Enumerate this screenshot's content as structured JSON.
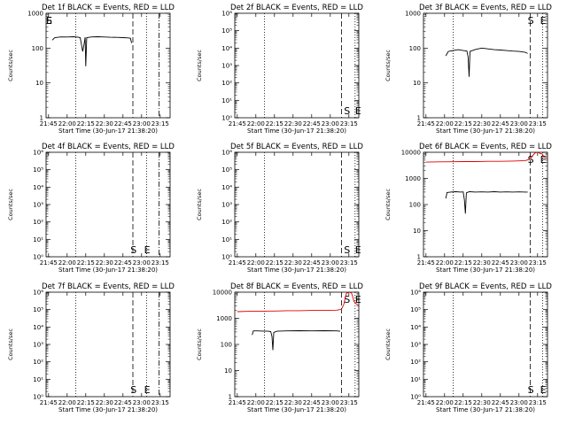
{
  "figure": {
    "xlabel": "Start Time (30-Jun-17 21:38:20)",
    "ylabel": "Counts/sec",
    "xticks": [
      "21:45",
      "22:00",
      "22:15",
      "22:30",
      "22:45",
      "23:00",
      "23:15"
    ],
    "marker_start": "S",
    "marker_end": "E",
    "colors": {
      "events": "#000000",
      "lld": "#dd0000",
      "background": "#ffffff"
    }
  },
  "chart_data": [
    {
      "type": "line",
      "title": "Det 1f BLACK = Events, RED = LLD",
      "xlabel": "Start Time (30-Jun-17 21:38:20)",
      "ylabel": "Counts/sec",
      "log": true,
      "ylim": [
        1,
        1000
      ],
      "xlim": [
        -2,
        98
      ],
      "mlim": [
        0,
        100
      ],
      "yticks": [
        {
          "v": 1,
          "t": "1"
        },
        {
          "v": 10,
          "t": "10"
        },
        {
          "v": 100,
          "t": "100"
        },
        {
          "v": 1000,
          "t": "1000"
        }
      ],
      "markers": {
        "s": 0,
        "e": 0,
        "s_pos": "top"
      },
      "vlines": [
        {
          "x": 22,
          "style": "dotted"
        },
        {
          "x": 68,
          "style": "dashed"
        },
        {
          "x": 79,
          "style": "dotted"
        },
        {
          "x": 89,
          "style": "dashdot"
        }
      ],
      "series": [
        {
          "color": "#000000",
          "points": [
            [
              3,
              170
            ],
            [
              5,
              200
            ],
            [
              10,
              210
            ],
            [
              15,
              208
            ],
            [
              20,
              212
            ],
            [
              24,
              205
            ],
            [
              25.5,
              200
            ],
            [
              26.5,
              130
            ],
            [
              27.5,
              80
            ],
            [
              28.5,
              120
            ],
            [
              29.5,
              205
            ],
            [
              30,
              30
            ],
            [
              30.8,
              200
            ],
            [
              35,
              210
            ],
            [
              40,
              212
            ],
            [
              45,
              208
            ],
            [
              50,
              205
            ],
            [
              55,
              203
            ],
            [
              60,
              200
            ],
            [
              64,
              196
            ],
            [
              66,
              192
            ],
            [
              67,
              140
            ]
          ]
        }
      ]
    },
    {
      "type": "line",
      "title": "Det 2f BLACK = Events, RED = LLD",
      "xlabel": "Start Time (30-Jun-17 21:38:20)",
      "ylabel": "Counts/sec",
      "log": true,
      "ylim": [
        1,
        1000000
      ],
      "xlim": [
        -2,
        98
      ],
      "mlim": [
        0,
        100
      ],
      "yticks": [
        {
          "v": 1,
          "t": "10⁰"
        },
        {
          "v": 10,
          "t": "10¹"
        },
        {
          "v": 100,
          "t": "10²"
        },
        {
          "v": 1000,
          "t": "10³"
        },
        {
          "v": 10000,
          "t": "10⁴"
        },
        {
          "v": 100000,
          "t": "10⁵"
        },
        {
          "v": 1000000,
          "t": "10⁶"
        }
      ],
      "markers": {
        "s": 88,
        "e": 97,
        "s_pos": "bottom"
      },
      "vlines": [
        {
          "x": 22,
          "style": "dotted"
        },
        {
          "x": 84,
          "style": "dashed"
        },
        {
          "x": 95,
          "style": "dotted"
        },
        {
          "x": 100,
          "style": "dashdot"
        }
      ],
      "series": []
    },
    {
      "type": "line",
      "title": "Det 3f BLACK = Events, RED = LLD",
      "xlabel": "Start Time (30-Jun-17 21:38:20)",
      "ylabel": "Counts/sec",
      "log": true,
      "ylim": [
        1,
        1000
      ],
      "xlim": [
        -2,
        98
      ],
      "mlim": [
        0,
        100
      ],
      "yticks": [
        {
          "v": 1,
          "t": "1"
        },
        {
          "v": 10,
          "t": "10"
        },
        {
          "v": 100,
          "t": "100"
        },
        {
          "v": 1000,
          "t": "1000"
        }
      ],
      "markers": {
        "s": 84,
        "e": 94,
        "s_pos": "top"
      },
      "vlines": [
        {
          "x": 22,
          "style": "dotted"
        },
        {
          "x": 84,
          "style": "dashed"
        },
        {
          "x": 94,
          "style": "dotted"
        },
        {
          "x": 103,
          "style": "dashdot"
        }
      ],
      "series": [
        {
          "color": "#000000",
          "points": [
            [
              16,
              60
            ],
            [
              18,
              80
            ],
            [
              22,
              85
            ],
            [
              26,
              90
            ],
            [
              30,
              85
            ],
            [
              33,
              82
            ],
            [
              34,
              55
            ],
            [
              34.8,
              15
            ],
            [
              35.5,
              80
            ],
            [
              40,
              92
            ],
            [
              45,
              100
            ],
            [
              50,
              95
            ],
            [
              55,
              90
            ],
            [
              60,
              88
            ],
            [
              65,
              85
            ],
            [
              70,
              82
            ],
            [
              75,
              80
            ],
            [
              80,
              76
            ],
            [
              82,
              70
            ]
          ]
        }
      ]
    },
    {
      "type": "line",
      "title": "Det 4f BLACK = Events, RED = LLD",
      "xlabel": "Start Time (30-Jun-17 21:38:20)",
      "ylabel": "Counts/sec",
      "log": true,
      "ylim": [
        1,
        1000000
      ],
      "xlim": [
        -2,
        98
      ],
      "mlim": [
        0,
        100
      ],
      "yticks": [
        {
          "v": 1,
          "t": "10⁰"
        },
        {
          "v": 10,
          "t": "10¹"
        },
        {
          "v": 100,
          "t": "10²"
        },
        {
          "v": 1000,
          "t": "10³"
        },
        {
          "v": 10000,
          "t": "10⁴"
        },
        {
          "v": 100000,
          "t": "10⁵"
        },
        {
          "v": 1000000,
          "t": "10⁶"
        }
      ],
      "markers": {
        "s": 68,
        "e": 79,
        "s_pos": "bottom"
      },
      "vlines": [
        {
          "x": 22,
          "style": "dotted"
        },
        {
          "x": 68,
          "style": "dashed"
        },
        {
          "x": 79,
          "style": "dotted"
        },
        {
          "x": 89,
          "style": "dashdot"
        }
      ],
      "series": []
    },
    {
      "type": "line",
      "title": "Det 5f BLACK = Events, RED = LLD",
      "xlabel": "Start Time (30-Jun-17 21:38:20)",
      "ylabel": "Counts/sec",
      "log": true,
      "ylim": [
        1,
        1000000
      ],
      "xlim": [
        -2,
        98
      ],
      "mlim": [
        0,
        100
      ],
      "yticks": [
        {
          "v": 1,
          "t": "10⁰"
        },
        {
          "v": 10,
          "t": "10¹"
        },
        {
          "v": 100,
          "t": "10²"
        },
        {
          "v": 1000,
          "t": "10³"
        },
        {
          "v": 10000,
          "t": "10⁴"
        },
        {
          "v": 100000,
          "t": "10⁵"
        },
        {
          "v": 1000000,
          "t": "10⁶"
        }
      ],
      "markers": {
        "s": 88,
        "e": 97,
        "s_pos": "bottom"
      },
      "vlines": [
        {
          "x": 22,
          "style": "dotted"
        },
        {
          "x": 84,
          "style": "dashed"
        },
        {
          "x": 95,
          "style": "dotted"
        },
        {
          "x": 100,
          "style": "dashdot"
        }
      ],
      "series": []
    },
    {
      "type": "line",
      "title": "Det 6f BLACK = Events, RED = LLD",
      "xlabel": "Start Time (30-Jun-17 21:38:20)",
      "ylabel": "Counts/sec",
      "log": true,
      "ylim": [
        1,
        10000
      ],
      "xlim": [
        -2,
        98
      ],
      "mlim": [
        0,
        100
      ],
      "yticks": [
        {
          "v": 1,
          "t": "1"
        },
        {
          "v": 10,
          "t": "10"
        },
        {
          "v": 100,
          "t": "100"
        },
        {
          "v": 1000,
          "t": "1000"
        },
        {
          "v": 10000,
          "t": "10000"
        }
      ],
      "markers": {
        "s": 84,
        "e": 94,
        "s_pos": "top"
      },
      "vlines": [
        {
          "x": 22,
          "style": "dotted"
        },
        {
          "x": 84,
          "style": "dashed"
        },
        {
          "x": 94,
          "style": "dotted"
        },
        {
          "x": 103,
          "style": "dashdot"
        }
      ],
      "series": [
        {
          "color": "#dd0000",
          "points": [
            [
              0,
              4200
            ],
            [
              10,
              4300
            ],
            [
              20,
              4350
            ],
            [
              30,
              4400
            ],
            [
              40,
              4400
            ],
            [
              50,
              4500
            ],
            [
              60,
              4500
            ],
            [
              70,
              4600
            ],
            [
              80,
              4800
            ],
            [
              84,
              5500
            ],
            [
              86,
              7500
            ],
            [
              88,
              9500
            ],
            [
              90,
              10000
            ],
            [
              92,
              9000
            ],
            [
              94,
              8500
            ],
            [
              95,
              6500
            ],
            [
              97,
              6000
            ],
            [
              98,
              5800
            ]
          ]
        },
        {
          "color": "#000000",
          "points": [
            [
              16,
              170
            ],
            [
              17,
              290
            ],
            [
              20,
              300
            ],
            [
              24,
              310
            ],
            [
              28,
              300
            ],
            [
              30,
              305
            ],
            [
              31,
              150
            ],
            [
              31.8,
              45
            ],
            [
              32.6,
              280
            ],
            [
              35,
              310
            ],
            [
              40,
              300
            ],
            [
              45,
              305
            ],
            [
              50,
              300
            ],
            [
              55,
              310
            ],
            [
              60,
              300
            ],
            [
              65,
              305
            ],
            [
              70,
              300
            ],
            [
              75,
              305
            ],
            [
              80,
              300
            ],
            [
              82,
              300
            ]
          ]
        }
      ]
    },
    {
      "type": "line",
      "title": "Det 7f BLACK = Events, RED = LLD",
      "xlabel": "Start Time (30-Jun-17 21:38:20)",
      "ylabel": "Counts/sec",
      "log": true,
      "ylim": [
        1,
        1000000
      ],
      "xlim": [
        -2,
        98
      ],
      "mlim": [
        0,
        100
      ],
      "yticks": [
        {
          "v": 1,
          "t": "10⁰"
        },
        {
          "v": 10,
          "t": "10¹"
        },
        {
          "v": 100,
          "t": "10²"
        },
        {
          "v": 1000,
          "t": "10³"
        },
        {
          "v": 10000,
          "t": "10⁴"
        },
        {
          "v": 100000,
          "t": "10⁵"
        },
        {
          "v": 1000000,
          "t": "10⁶"
        }
      ],
      "markers": {
        "s": 68,
        "e": 79,
        "s_pos": "bottom"
      },
      "vlines": [
        {
          "x": 22,
          "style": "dotted"
        },
        {
          "x": 68,
          "style": "dashed"
        },
        {
          "x": 79,
          "style": "dotted"
        },
        {
          "x": 89,
          "style": "dashdot"
        }
      ],
      "series": []
    },
    {
      "type": "line",
      "title": "Det 8f BLACK = Events, RED = LLD",
      "xlabel": "Start Time (30-Jun-17 21:38:20)",
      "ylabel": "Counts/sec",
      "log": true,
      "ylim": [
        1,
        10000
      ],
      "xlim": [
        -2,
        98
      ],
      "mlim": [
        0,
        100
      ],
      "yticks": [
        {
          "v": 1,
          "t": "1"
        },
        {
          "v": 10,
          "t": "10"
        },
        {
          "v": 100,
          "t": "100"
        },
        {
          "v": 1000,
          "t": "1000"
        },
        {
          "v": 10000,
          "t": "10000"
        }
      ],
      "markers": {
        "s": 88,
        "e": 97,
        "s_pos": "top"
      },
      "vlines": [
        {
          "x": 22,
          "style": "dotted"
        },
        {
          "x": 84,
          "style": "dashed"
        },
        {
          "x": 95,
          "style": "dotted"
        },
        {
          "x": 100,
          "style": "dashdot"
        }
      ],
      "series": [
        {
          "color": "#dd0000",
          "points": [
            [
              0,
              1800
            ],
            [
              10,
              1850
            ],
            [
              20,
              1850
            ],
            [
              25,
              1900
            ],
            [
              30,
              1900
            ],
            [
              40,
              1950
            ],
            [
              50,
              1950
            ],
            [
              60,
              2000
            ],
            [
              70,
              2000
            ],
            [
              80,
              2050
            ],
            [
              84,
              2200
            ],
            [
              86,
              3500
            ],
            [
              87,
              6000
            ],
            [
              88,
              9000
            ],
            [
              90,
              10000
            ],
            [
              92,
              9500
            ],
            [
              93,
              7000
            ],
            [
              94,
              4500
            ],
            [
              96,
              3500
            ],
            [
              98,
              3200
            ],
            [
              100,
              3000
            ]
          ]
        },
        {
          "color": "#000000",
          "points": [
            [
              12,
              230
            ],
            [
              13,
              330
            ],
            [
              16,
              330
            ],
            [
              20,
              325
            ],
            [
              25,
              320
            ],
            [
              27,
              310
            ],
            [
              28,
              200
            ],
            [
              28.7,
              60
            ],
            [
              29.4,
              290
            ],
            [
              32,
              320
            ],
            [
              40,
              330
            ],
            [
              50,
              335
            ],
            [
              60,
              330
            ],
            [
              70,
              335
            ],
            [
              80,
              330
            ],
            [
              83,
              320
            ]
          ]
        }
      ]
    },
    {
      "type": "line",
      "title": "Det 9f BLACK = Events, RED = LLD",
      "xlabel": "Start Time (30-Jun-17 21:38:20)",
      "ylabel": "Counts/sec",
      "log": true,
      "ylim": [
        1,
        1000000
      ],
      "xlim": [
        -2,
        98
      ],
      "mlim": [
        0,
        100
      ],
      "yticks": [
        {
          "v": 1,
          "t": "10⁰"
        },
        {
          "v": 10,
          "t": "10¹"
        },
        {
          "v": 100,
          "t": "10²"
        },
        {
          "v": 1000,
          "t": "10³"
        },
        {
          "v": 10000,
          "t": "10⁴"
        },
        {
          "v": 100000,
          "t": "10⁵"
        },
        {
          "v": 1000000,
          "t": "10⁶"
        }
      ],
      "markers": {
        "s": 84,
        "e": 94,
        "s_pos": "bottom"
      },
      "vlines": [
        {
          "x": 22,
          "style": "dotted"
        },
        {
          "x": 84,
          "style": "dashed"
        },
        {
          "x": 94,
          "style": "dotted"
        },
        {
          "x": 103,
          "style": "dashdot"
        }
      ],
      "series": []
    }
  ]
}
